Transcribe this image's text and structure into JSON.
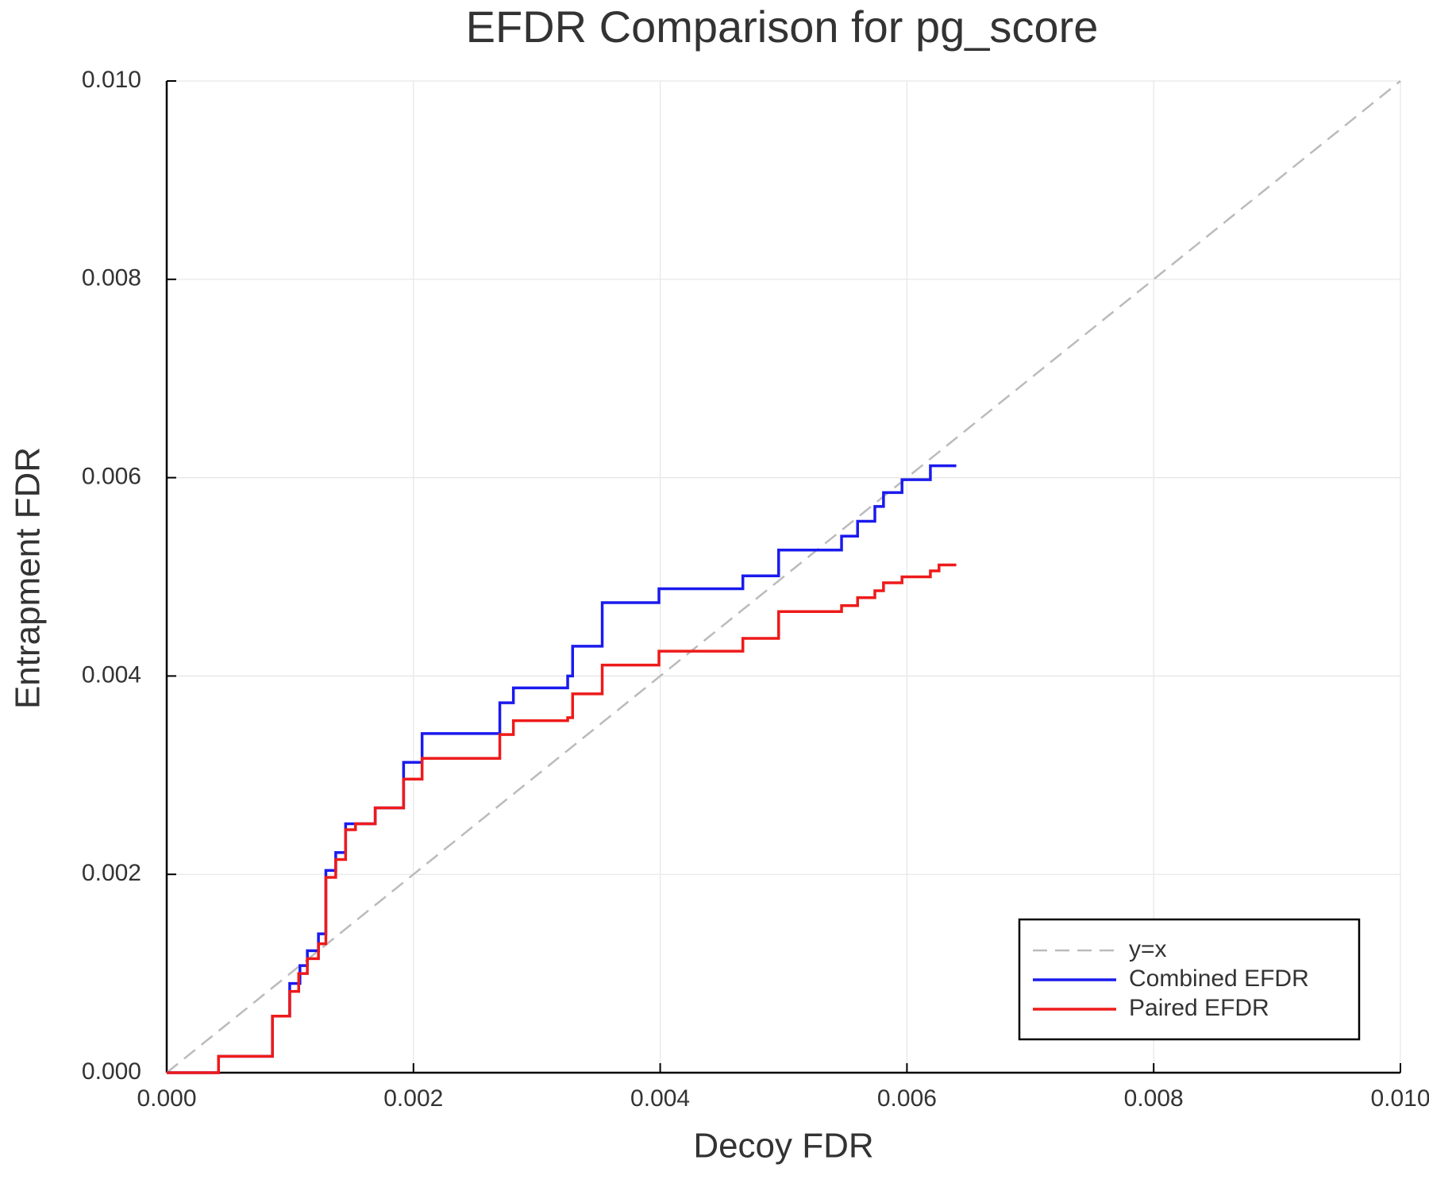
{
  "chart_data": {
    "type": "line",
    "step": "post",
    "title": "EFDR Comparison for pg_score",
    "x_label": "Decoy FDR",
    "y_label": "Entrapment FDR",
    "xlim": [
      0,
      0.01
    ],
    "ylim": [
      0,
      0.01
    ],
    "xticks": [
      {
        "value": 0,
        "label": "0.000"
      },
      {
        "value": 0.002,
        "label": "0.002"
      },
      {
        "value": 0.004,
        "label": "0.004"
      },
      {
        "value": 0.006,
        "label": "0.006"
      },
      {
        "value": 0.008,
        "label": "0.008"
      },
      {
        "value": 0.01,
        "label": "0.010"
      }
    ],
    "yticks": [
      {
        "value": 0,
        "label": "0.000"
      },
      {
        "value": 0.002,
        "label": "0.002"
      },
      {
        "value": 0.004,
        "label": "0.004"
      },
      {
        "value": 0.006,
        "label": "0.006"
      },
      {
        "value": 0.008,
        "label": "0.008"
      },
      {
        "value": 0.01,
        "label": "0.010"
      }
    ],
    "grid": true,
    "legend": "lower right",
    "series": [
      {
        "name": "y=x",
        "color": "#bbbbbb",
        "linestyle": "dashed",
        "step": false,
        "x": [
          0,
          0.01
        ],
        "values": [
          0,
          0.01
        ]
      },
      {
        "name": "Combined EFDR",
        "color": "#1a1aee",
        "linestyle": "solid",
        "x": [
          0,
          0.00042,
          0.000857,
          0.000997,
          0.00108,
          0.00114,
          0.00123,
          0.00129,
          0.00137,
          0.00145,
          0.00169,
          0.00192,
          0.00207,
          0.0027,
          0.00281,
          0.00325,
          0.00329,
          0.00353,
          0.00399,
          0.00467,
          0.00496,
          0.00547,
          0.0056,
          0.00574,
          0.00581,
          0.00596,
          0.00619,
          0.0064
        ],
        "values": [
          0,
          0.000165,
          0.00057,
          0.0009,
          0.00108,
          0.00123,
          0.0014,
          0.00204,
          0.00222,
          0.00251,
          0.00267,
          0.00313,
          0.00342,
          0.00373,
          0.00388,
          0.004,
          0.0043,
          0.00474,
          0.00488,
          0.00501,
          0.00527,
          0.00541,
          0.00556,
          0.00571,
          0.00585,
          0.00598,
          0.00612,
          0.00612
        ]
      },
      {
        "name": "Paired EFDR",
        "color": "#ee1a1a",
        "linestyle": "solid",
        "x": [
          0,
          0.00042,
          0.000857,
          0.000997,
          0.00107,
          0.00114,
          0.00123,
          0.00129,
          0.00137,
          0.00145,
          0.00153,
          0.00169,
          0.00192,
          0.00207,
          0.0027,
          0.00281,
          0.00325,
          0.00329,
          0.00353,
          0.00399,
          0.00467,
          0.00496,
          0.00547,
          0.0056,
          0.00574,
          0.00581,
          0.00596,
          0.00619,
          0.00626,
          0.0064
        ],
        "values": [
          0,
          0.000165,
          0.00057,
          0.00082,
          0.001,
          0.00115,
          0.0013,
          0.00197,
          0.00215,
          0.00245,
          0.00251,
          0.00267,
          0.00296,
          0.00317,
          0.00341,
          0.00355,
          0.00358,
          0.00382,
          0.00411,
          0.00425,
          0.00438,
          0.00465,
          0.00471,
          0.00479,
          0.00486,
          0.00494,
          0.005,
          0.00506,
          0.00512,
          0.00512
        ]
      }
    ]
  }
}
